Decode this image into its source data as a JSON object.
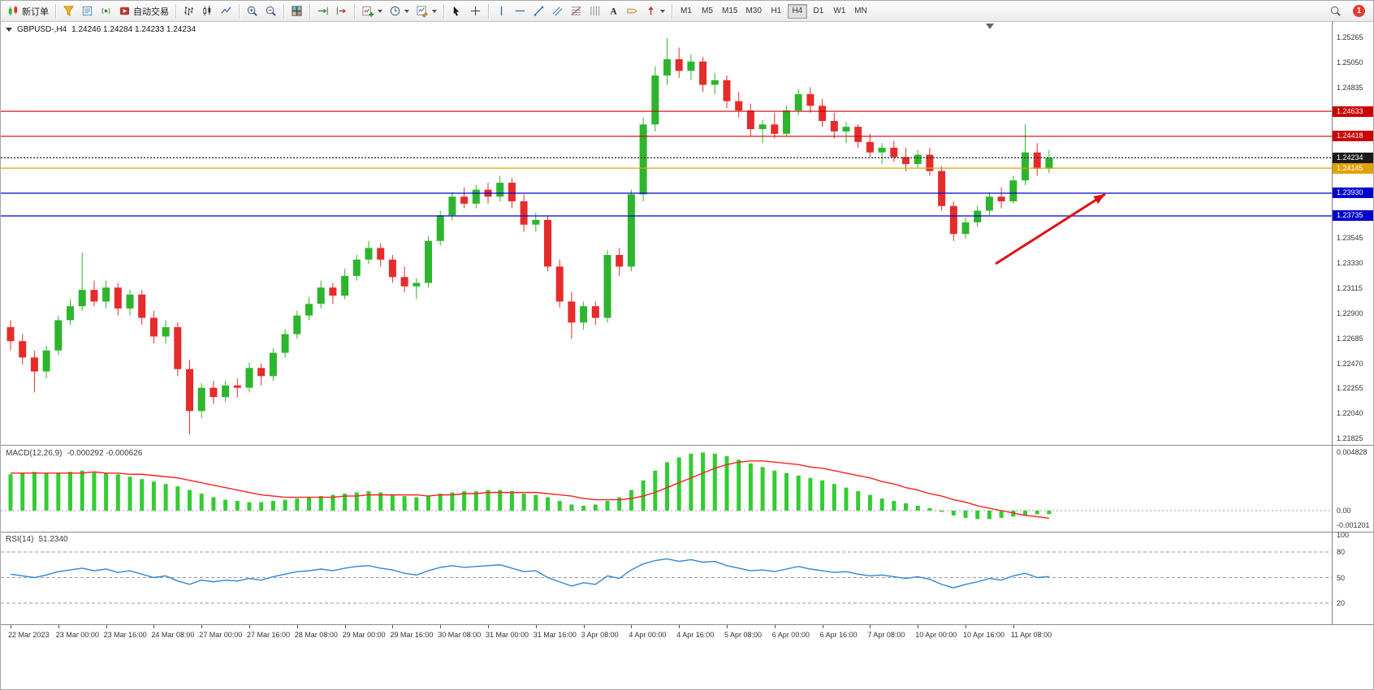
{
  "window": {
    "badge_count": "1"
  },
  "toolbar": {
    "new_order_label": "新订单",
    "autotrading_label": "自动交易",
    "timeframes": [
      "M1",
      "M5",
      "M15",
      "M30",
      "H1",
      "H4",
      "D1",
      "W1",
      "MN"
    ],
    "active_timeframe": "H4",
    "icons": [
      "new-order",
      "funnel",
      "journal",
      "broadcast",
      "autotrading",
      "bar-chart",
      "candlestick-chart",
      "line-chart",
      "zoom-in",
      "zoom-out",
      "tile-windows",
      "auto-scroll",
      "chart-shift",
      "new-chart",
      "periods",
      "templates",
      "cursor",
      "crosshair",
      "vertical-line",
      "horizontal-line",
      "trend-line",
      "equidistant-channel",
      "fibonacci",
      "cycle-lines",
      "text",
      "text-label",
      "arrows",
      "search",
      "notification-badge"
    ]
  },
  "chart_data": [
    {
      "type": "candlestick",
      "title": "GBPUSD-,H4",
      "ohlc_display": "1.24246 1.24284 1.24233 1.24234",
      "timeframe": "H4",
      "ylim": [
        1.2177,
        1.254
      ],
      "y_ticks": [
        1.25265,
        1.2505,
        1.24835,
        1.23545,
        1.2333,
        1.23115,
        1.229,
        1.22685,
        1.2247,
        1.22255,
        1.2204,
        1.21825
      ],
      "x_labels": [
        "22 Mar 2023",
        "23 Mar 00:00",
        "23 Mar 16:00",
        "24 Mar 08:00",
        "27 Mar 00:00",
        "27 Mar 16:00",
        "28 Mar 08:00",
        "29 Mar 00:00",
        "29 Mar 16:00",
        "30 Mar 08:00",
        "31 Mar 00:00",
        "31 Mar 16:00",
        "3 Apr 08:00",
        "4 Apr 00:00",
        "4 Apr 16:00",
        "5 Apr 08:00",
        "6 Apr 00:00",
        "6 Apr 16:00",
        "7 Apr 08:00",
        "10 Apr 00:00",
        "10 Apr 16:00",
        "11 Apr 08:00"
      ],
      "candles_per_label": 4,
      "colors": {
        "bull": "#2db52d",
        "bear": "#e52b2b"
      },
      "candles": [
        [
          1.2278,
          1.2284,
          1.2258,
          1.2266
        ],
        [
          1.2266,
          1.2272,
          1.2246,
          1.2252
        ],
        [
          1.2252,
          1.2258,
          1.2222,
          1.224
        ],
        [
          1.224,
          1.2262,
          1.2234,
          1.2258
        ],
        [
          1.2258,
          1.2288,
          1.2254,
          1.2284
        ],
        [
          1.2284,
          1.2302,
          1.228,
          1.2296
        ],
        [
          1.2296,
          1.2342,
          1.2292,
          1.231
        ],
        [
          1.231,
          1.2318,
          1.2296,
          1.23
        ],
        [
          1.23,
          1.2318,
          1.2294,
          1.2312
        ],
        [
          1.2312,
          1.2316,
          1.2288,
          1.2294
        ],
        [
          1.2294,
          1.231,
          1.2288,
          1.2306
        ],
        [
          1.2306,
          1.231,
          1.228,
          1.2286
        ],
        [
          1.2286,
          1.2292,
          1.2264,
          1.227
        ],
        [
          1.227,
          1.2284,
          1.2264,
          1.2278
        ],
        [
          1.2278,
          1.2282,
          1.2236,
          1.2242
        ],
        [
          1.2242,
          1.225,
          1.2186,
          1.2206
        ],
        [
          1.2206,
          1.223,
          1.22,
          1.2226
        ],
        [
          1.2226,
          1.2232,
          1.2212,
          1.2218
        ],
        [
          1.2218,
          1.2232,
          1.2214,
          1.2228
        ],
        [
          1.2228,
          1.2234,
          1.2218,
          1.2226
        ],
        [
          1.2226,
          1.2248,
          1.2222,
          1.2243
        ],
        [
          1.2243,
          1.2247,
          1.2228,
          1.2236
        ],
        [
          1.2236,
          1.226,
          1.2232,
          1.2256
        ],
        [
          1.2256,
          1.2276,
          1.2252,
          1.2272
        ],
        [
          1.2272,
          1.2292,
          1.2268,
          1.2288
        ],
        [
          1.2288,
          1.2304,
          1.2284,
          1.2298
        ],
        [
          1.2298,
          1.2318,
          1.2294,
          1.2312
        ],
        [
          1.2312,
          1.2316,
          1.2298,
          1.2305
        ],
        [
          1.2305,
          1.2328,
          1.2302,
          1.2322
        ],
        [
          1.2322,
          1.234,
          1.2318,
          1.2336
        ],
        [
          1.2336,
          1.2352,
          1.2332,
          1.2346
        ],
        [
          1.2346,
          1.235,
          1.233,
          1.2336
        ],
        [
          1.2336,
          1.234,
          1.2316,
          1.2321
        ],
        [
          1.2321,
          1.233,
          1.2308,
          1.2313
        ],
        [
          1.2313,
          1.232,
          1.2302,
          1.2316
        ],
        [
          1.2316,
          1.2356,
          1.2312,
          1.2352
        ],
        [
          1.2352,
          1.2378,
          1.2348,
          1.2374
        ],
        [
          1.2374,
          1.2394,
          1.237,
          1.239
        ],
        [
          1.239,
          1.2398,
          1.238,
          1.2384
        ],
        [
          1.2384,
          1.24,
          1.238,
          1.2396
        ],
        [
          1.2396,
          1.2402,
          1.2384,
          1.239
        ],
        [
          1.239,
          1.2408,
          1.2386,
          1.2402
        ],
        [
          1.2402,
          1.2406,
          1.238,
          1.2386
        ],
        [
          1.2386,
          1.2392,
          1.236,
          1.2366
        ],
        [
          1.2366,
          1.2376,
          1.236,
          1.237
        ],
        [
          1.237,
          1.2374,
          1.2326,
          1.233
        ],
        [
          1.233,
          1.2336,
          1.2295,
          1.23
        ],
        [
          1.23,
          1.2308,
          1.2268,
          1.2282
        ],
        [
          1.2282,
          1.23,
          1.2276,
          1.2296
        ],
        [
          1.2296,
          1.23,
          1.228,
          1.2286
        ],
        [
          1.2286,
          1.2344,
          1.2282,
          1.234
        ],
        [
          1.234,
          1.2346,
          1.2322,
          1.233
        ],
        [
          1.233,
          1.2396,
          1.2326,
          1.2392
        ],
        [
          1.2392,
          1.2458,
          1.2386,
          1.2452
        ],
        [
          1.2452,
          1.2502,
          1.2446,
          1.2494
        ],
        [
          1.2494,
          1.2526,
          1.2486,
          1.2508
        ],
        [
          1.2508,
          1.2518,
          1.2492,
          1.2498
        ],
        [
          1.2498,
          1.2512,
          1.249,
          1.2506
        ],
        [
          1.2506,
          1.251,
          1.248,
          1.2486
        ],
        [
          1.2486,
          1.2496,
          1.2478,
          1.249
        ],
        [
          1.249,
          1.2494,
          1.2466,
          1.2472
        ],
        [
          1.2472,
          1.248,
          1.2458,
          1.2464
        ],
        [
          1.2464,
          1.247,
          1.2442,
          1.2448
        ],
        [
          1.2448,
          1.2456,
          1.2436,
          1.2452
        ],
        [
          1.2452,
          1.2462,
          1.244,
          1.2444
        ],
        [
          1.2444,
          1.2468,
          1.2442,
          1.2464
        ],
        [
          1.2464,
          1.2482,
          1.246,
          1.2478
        ],
        [
          1.2478,
          1.2484,
          1.2462,
          1.2468
        ],
        [
          1.2468,
          1.2474,
          1.245,
          1.2455
        ],
        [
          1.2455,
          1.2462,
          1.244,
          1.2446
        ],
        [
          1.2446,
          1.2454,
          1.2436,
          1.245
        ],
        [
          1.245,
          1.2452,
          1.2432,
          1.2437
        ],
        [
          1.2437,
          1.2444,
          1.2424,
          1.2428
        ],
        [
          1.2428,
          1.2436,
          1.2418,
          1.2432
        ],
        [
          1.2432,
          1.2438,
          1.242,
          1.2424
        ],
        [
          1.2424,
          1.2432,
          1.2412,
          1.2418
        ],
        [
          1.2418,
          1.243,
          1.2414,
          1.2426
        ],
        [
          1.2426,
          1.2432,
          1.2408,
          1.2412
        ],
        [
          1.2412,
          1.2416,
          1.2378,
          1.2382
        ],
        [
          1.2382,
          1.2386,
          1.2352,
          1.2358
        ],
        [
          1.2358,
          1.2372,
          1.2354,
          1.2368
        ],
        [
          1.2368,
          1.2382,
          1.2364,
          1.2378
        ],
        [
          1.2378,
          1.2394,
          1.2374,
          1.239
        ],
        [
          1.239,
          1.2398,
          1.238,
          1.2386
        ],
        [
          1.2386,
          1.2408,
          1.2384,
          1.2404
        ],
        [
          1.2404,
          1.2452,
          1.24,
          1.2428
        ],
        [
          1.2428,
          1.2436,
          1.2408,
          1.2414
        ],
        [
          1.2414,
          1.243,
          1.241,
          1.24234
        ]
      ],
      "hlines": [
        {
          "price": 1.24633,
          "color": "#cc0000",
          "style": "solid",
          "label": "1.24633"
        },
        {
          "price": 1.24418,
          "color": "#cc0000",
          "style": "solid",
          "label": "1.24418"
        },
        {
          "price": 1.24234,
          "color": "#1a1a1a",
          "style": "dotted",
          "label": "1.24234",
          "role": "current-price"
        },
        {
          "price": 1.24145,
          "color": "#e2a000",
          "style": "solid",
          "label": "1.24145"
        },
        {
          "price": 1.2393,
          "color": "#0000cc",
          "style": "solid",
          "label": "1.23930"
        },
        {
          "price": 1.23735,
          "color": "#0000cc",
          "style": "solid",
          "label": "1.23735"
        }
      ],
      "annotation_arrow": {
        "from": [
          1225,
          298
        ],
        "to": [
          1360,
          212
        ],
        "color": "#e01010"
      }
    },
    {
      "type": "bar",
      "title": "MACD(12,26,9)",
      "values_display": "-0.000292 -0.000626",
      "y_ticks": [
        "0.004828",
        "0.00",
        "-0.001201"
      ],
      "colors": {
        "histogram": "#33cc33",
        "signal": "#ff2020"
      },
      "histogram": [
        0.003,
        0.0031,
        0.0032,
        0.0031,
        0.0031,
        0.0032,
        0.0033,
        0.0032,
        0.0031,
        0.003,
        0.0028,
        0.0026,
        0.0024,
        0.0022,
        0.002,
        0.0017,
        0.0014,
        0.0011,
        0.0009,
        0.0008,
        0.0007,
        0.0007,
        0.0008,
        0.0009,
        0.001,
        0.0011,
        0.0012,
        0.0013,
        0.0014,
        0.0015,
        0.0016,
        0.0015,
        0.0013,
        0.0012,
        0.0011,
        0.0012,
        0.0014,
        0.0015,
        0.0016,
        0.0016,
        0.0017,
        0.0017,
        0.0016,
        0.0014,
        0.0013,
        0.0011,
        0.0008,
        0.0005,
        0.0004,
        0.0005,
        0.0008,
        0.0011,
        0.0017,
        0.0025,
        0.0033,
        0.004,
        0.0044,
        0.0047,
        0.0048,
        0.0047,
        0.0045,
        0.0042,
        0.0039,
        0.0036,
        0.0033,
        0.0031,
        0.0029,
        0.0027,
        0.0025,
        0.0022,
        0.0019,
        0.0016,
        0.0013,
        0.001,
        0.0008,
        0.0006,
        0.0004,
        0.0002,
        -0.0001,
        -0.0004,
        -0.0006,
        -0.0007,
        -0.0007,
        -0.0006,
        -0.0005,
        -0.0004,
        -0.0003,
        -0.000292
      ],
      "signal": [
        0.0031,
        0.0031,
        0.0031,
        0.0031,
        0.0031,
        0.0031,
        0.0031,
        0.0032,
        0.0031,
        0.0031,
        0.003,
        0.003,
        0.0029,
        0.0028,
        0.0027,
        0.0025,
        0.0023,
        0.0021,
        0.0019,
        0.0017,
        0.0015,
        0.0013,
        0.0012,
        0.0011,
        0.0011,
        0.0011,
        0.0011,
        0.0011,
        0.0012,
        0.0012,
        0.0013,
        0.0013,
        0.0013,
        0.0013,
        0.0013,
        0.0012,
        0.0013,
        0.0013,
        0.0014,
        0.0014,
        0.0015,
        0.0015,
        0.0015,
        0.0015,
        0.0015,
        0.0014,
        0.0013,
        0.0012,
        0.001,
        0.0009,
        0.0009,
        0.0009,
        0.001,
        0.0012,
        0.0015,
        0.0019,
        0.0023,
        0.0027,
        0.0031,
        0.0035,
        0.0038,
        0.004,
        0.0041,
        0.0041,
        0.004,
        0.0039,
        0.0038,
        0.0036,
        0.0035,
        0.0033,
        0.0031,
        0.0029,
        0.0027,
        0.0024,
        0.0022,
        0.0019,
        0.0017,
        0.0014,
        0.0012,
        0.0009,
        0.0007,
        0.0004,
        0.0002,
        0.0,
        -0.0002,
        -0.0004,
        -0.0005,
        -0.000626
      ]
    },
    {
      "type": "line",
      "title": "RSI(14)",
      "value_display": "51.2340",
      "y_ticks": [
        100,
        80,
        50,
        20
      ],
      "levels": [
        80,
        50,
        20
      ],
      "colors": {
        "line": "#2f86d2"
      },
      "values": [
        54,
        52,
        50,
        53,
        57,
        59,
        61,
        58,
        60,
        56,
        58,
        54,
        50,
        52,
        46,
        42,
        47,
        45,
        47,
        46,
        49,
        47,
        51,
        54,
        57,
        58,
        60,
        58,
        61,
        63,
        64,
        61,
        59,
        55,
        53,
        58,
        62,
        64,
        62,
        63,
        64,
        65,
        61,
        57,
        58,
        50,
        45,
        40,
        44,
        42,
        52,
        49,
        59,
        66,
        70,
        72,
        69,
        71,
        68,
        69,
        64,
        61,
        58,
        59,
        57,
        60,
        63,
        60,
        58,
        56,
        57,
        54,
        52,
        53,
        51,
        49,
        51,
        48,
        42,
        38,
        42,
        45,
        49,
        47,
        52,
        55,
        50,
        51.234
      ]
    }
  ]
}
